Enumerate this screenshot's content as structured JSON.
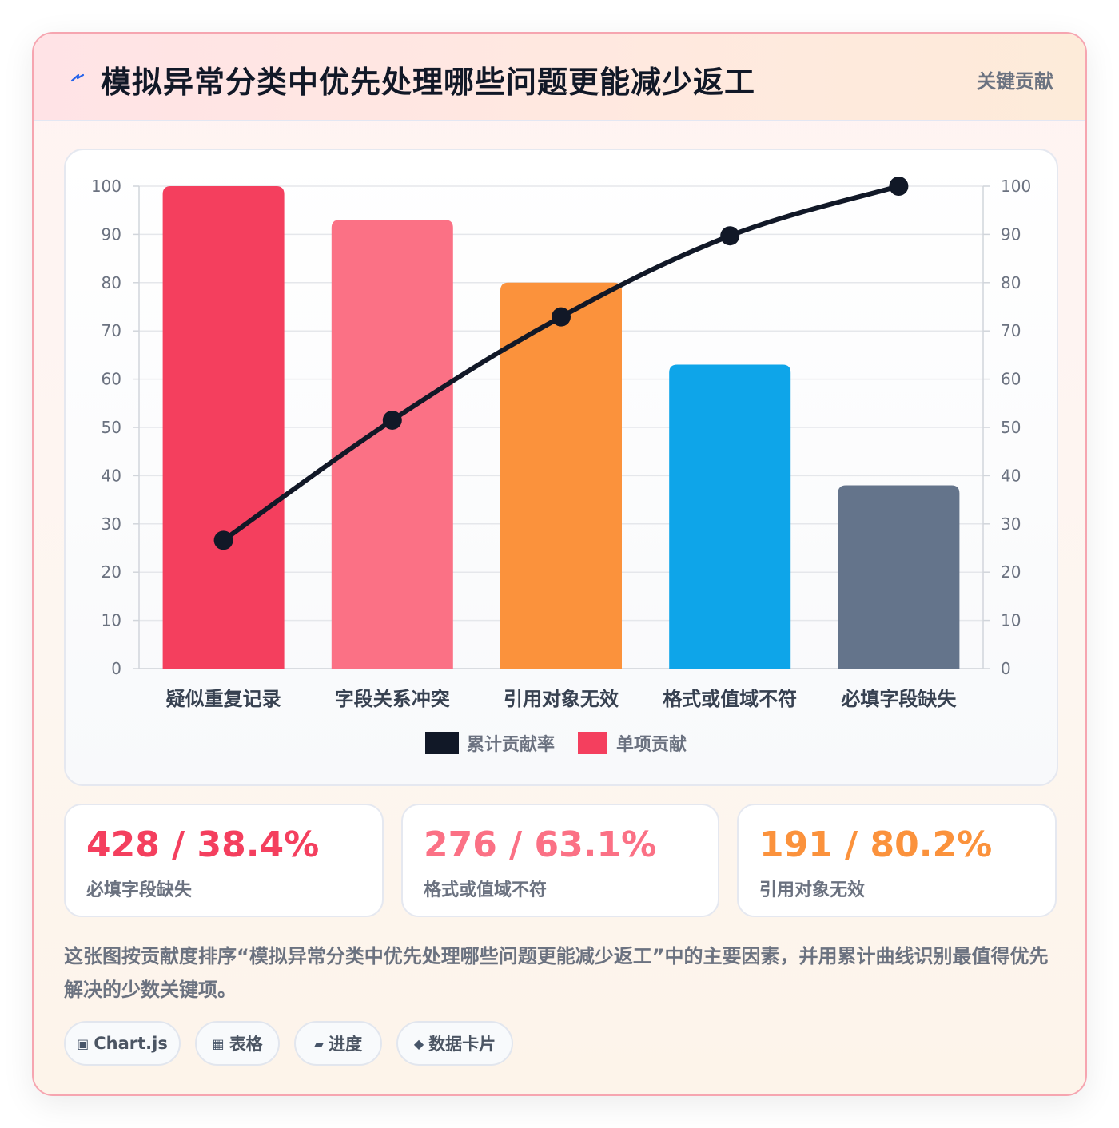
{
  "header": {
    "title": "模拟异常分类中优先处理哪些问题更能减少返工",
    "badge": "关键贡献"
  },
  "chart_data": {
    "type": "bar",
    "categories": [
      "疑似重复记录",
      "字段关系冲突",
      "引用对象无效",
      "格式或值域不符",
      "必填字段缺失"
    ],
    "series": [
      {
        "name": "单项贡献",
        "type": "bar",
        "values": [
          100,
          93,
          80,
          63,
          38
        ],
        "colors": [
          "#f43f5e",
          "#fb7185",
          "#fb923c",
          "#0ea5e9",
          "#64748b"
        ]
      },
      {
        "name": "累计贡献率",
        "type": "line",
        "values": [
          26.6,
          51.5,
          72.9,
          89.7,
          100
        ],
        "color": "#111827"
      }
    ],
    "ylim": [
      0,
      100
    ],
    "yticks": [
      0,
      10,
      20,
      30,
      40,
      50,
      60,
      70,
      80,
      90,
      100
    ],
    "y2lim": [
      0,
      100
    ],
    "legend_position": "bottom",
    "grid": true
  },
  "stats": [
    {
      "value": "428 / 38.4%",
      "label": "必填字段缺失",
      "color": "#f43f5e"
    },
    {
      "value": "276 / 63.1%",
      "label": "格式或值域不符",
      "color": "#fb7185"
    },
    {
      "value": "191 / 80.2%",
      "label": "引用对象无效",
      "color": "#fb923c"
    }
  ],
  "description": "这张图按贡献度排序“模拟异常分类中优先处理哪些问题更能减少返工”中的主要因素，并用累计曲线识别最值得优先解决的少数关键项。",
  "chips": [
    {
      "icon": "▣",
      "label": "Chart.js",
      "icon_name": "chart-icon"
    },
    {
      "icon": "▦",
      "label": "表格",
      "icon_name": "table-icon"
    },
    {
      "icon": "▰",
      "label": "进度",
      "icon_name": "progress-icon"
    },
    {
      "icon": "◆",
      "label": "数据卡片",
      "icon_name": "diamond-icon"
    }
  ]
}
